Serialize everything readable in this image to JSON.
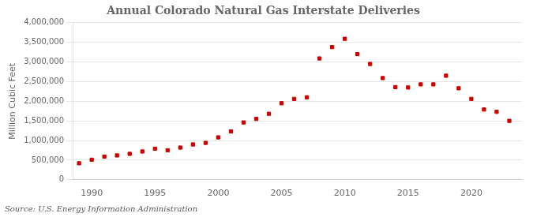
{
  "chart_data": {
    "type": "scatter",
    "title": "Annual Colorado Natural Gas Interstate Deliveries",
    "ylabel": "Million Cubic Feet",
    "annotations": [
      "Source: U.S. Energy Information Administration"
    ],
    "x": [
      1989,
      1990,
      1991,
      1992,
      1993,
      1994,
      1995,
      1996,
      1997,
      1998,
      1999,
      2000,
      2001,
      2002,
      2003,
      2004,
      2005,
      2006,
      2007,
      2008,
      2009,
      2010,
      2011,
      2012,
      2013,
      2014,
      2015,
      2016,
      2017,
      2018,
      2019,
      2020,
      2021,
      2022,
      2023
    ],
    "values": [
      420000,
      510000,
      590000,
      620000,
      660000,
      720000,
      790000,
      750000,
      820000,
      900000,
      940000,
      1080000,
      1230000,
      1460000,
      1550000,
      1680000,
      1950000,
      2060000,
      2100000,
      3090000,
      3380000,
      3590000,
      3200000,
      2950000,
      2590000,
      2360000,
      2350000,
      2430000,
      2430000,
      2650000,
      2330000,
      2060000,
      1790000,
      1730000,
      1500000
    ],
    "color": "#cc0000",
    "marker": "square",
    "xlim": [
      1988.5,
      2024
    ],
    "xticks": [
      1990,
      1995,
      2000,
      2005,
      2010,
      2015,
      2020
    ],
    "ylim": [
      0,
      4000000
    ],
    "yticks": [
      0,
      {
        "value": 500000,
        "label": "500,000"
      },
      {
        "value": 1000000,
        "label": "1,000,000"
      },
      {
        "value": 1500000,
        "label": "1,500,000"
      },
      {
        "value": 2000000,
        "label": "2,000,000"
      },
      {
        "value": 2500000,
        "label": "2,500,000"
      },
      {
        "value": 3000000,
        "label": "3,000,000"
      },
      {
        "value": 3500000,
        "label": "3,500,000"
      },
      {
        "value": 4000000,
        "label": "4,000,000"
      }
    ],
    "grid": "y"
  }
}
